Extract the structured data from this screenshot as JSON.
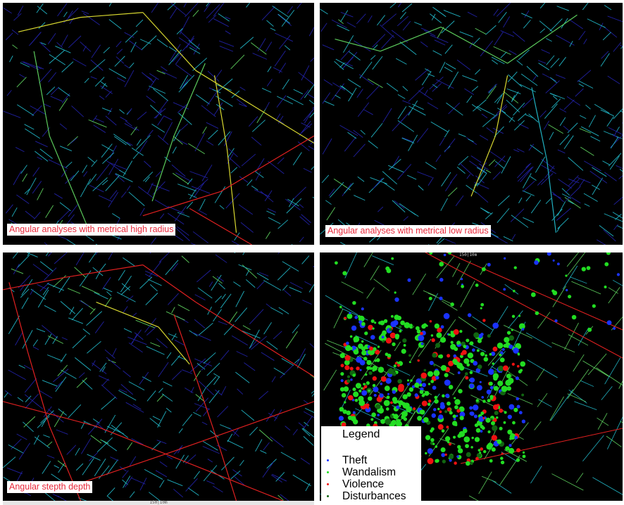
{
  "panels": [
    {
      "id": "p1",
      "caption": "Angular analyses with metrical high radius"
    },
    {
      "id": "p2",
      "caption": "Angular analyses with metrical low radius"
    },
    {
      "id": "p3",
      "caption": "Angular stepth depth"
    },
    {
      "id": "p4",
      "caption": ""
    }
  ],
  "scale_labels": {
    "top": "150|10m",
    "bottom": "150|10m"
  },
  "legend": {
    "title": "Legend",
    "items": [
      {
        "label": "Theft",
        "color": "#1a33ff"
      },
      {
        "label": "Wandalism",
        "color": "#22dd22"
      },
      {
        "label": "Violence",
        "color": "#ee1111"
      },
      {
        "label": "Disturbances",
        "color": "#116611"
      }
    ]
  },
  "colors": {
    "background": "#000000",
    "street_low": "#2020a0",
    "street_mid": "#20b0c0",
    "street_green": "#5ccc5c",
    "street_yellow": "#d8d830",
    "street_high": "#e02020",
    "caption_text": "#e8283a"
  }
}
